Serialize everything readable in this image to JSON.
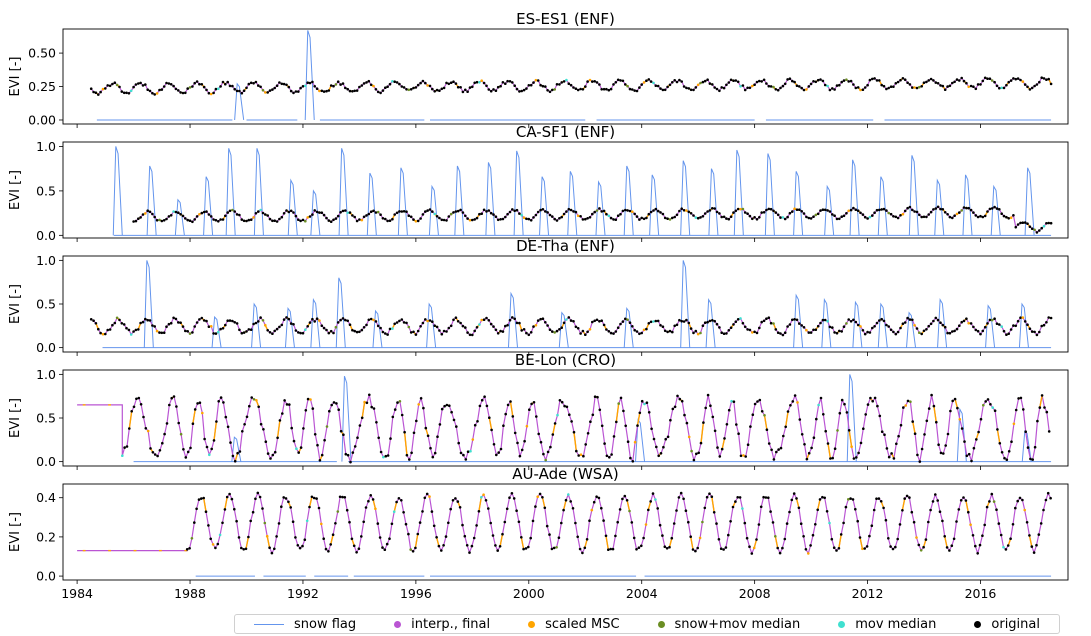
{
  "chart_data": {
    "type": "line",
    "xticks": [
      "1984",
      "1988",
      "1992",
      "1996",
      "2000",
      "2004",
      "2008",
      "2012",
      "2016"
    ],
    "x_range": [
      1983.5,
      2019.1
    ],
    "legend": {
      "placement": "bottom",
      "items": [
        {
          "label": "snow flag",
          "kind": "line",
          "color": "#6495ed"
        },
        {
          "label": "interp., final",
          "kind": "dot",
          "color": "#ba55d3"
        },
        {
          "label": "scaled MSC",
          "kind": "dot",
          "color": "#ffa500"
        },
        {
          "label": "snow+mov median",
          "kind": "dot",
          "color": "#6b8e23"
        },
        {
          "label": "mov median",
          "kind": "dot",
          "color": "#40e0d0"
        },
        {
          "label": "original",
          "kind": "dot",
          "color": "#000000"
        }
      ]
    },
    "panels": [
      {
        "title": "ES-ES1 (ENF)",
        "ylabel": "EVI [-]",
        "ylim": [
          -0.03,
          0.68
        ],
        "yticks": [
          "0.00",
          "0.25",
          "0.50"
        ],
        "ytick_values": [
          0,
          0.25,
          0.5
        ],
        "start": 1984.5,
        "end": 2018.5,
        "snow_segments": [
          [
            1984.7,
            1989.5
          ],
          [
            1990.0,
            1991.8
          ],
          [
            1992.6,
            1996.3
          ],
          [
            1996.5,
            2002.0
          ],
          [
            2002.4,
            2008.0
          ],
          [
            2008.4,
            2012.2
          ],
          [
            2012.6,
            2018.5
          ]
        ],
        "snow_spikes": [
          {
            "x": 1989.7,
            "y": 0.27
          },
          {
            "x": 1992.2,
            "y": 0.67
          }
        ]
      },
      {
        "title": "CA-SF1 (ENF)",
        "ylabel": "EVI [-]",
        "ylim": [
          -0.03,
          1.05
        ],
        "yticks": [
          "0.0",
          "0.5",
          "1.0"
        ],
        "ytick_values": [
          0,
          0.5,
          1.0
        ],
        "start": 1986.0,
        "end": 2018.5,
        "snow_segments": [
          [
            1985.3,
            2018.5
          ]
        ],
        "snow_spikes": [
          {
            "x": 1985.4,
            "y": 1.0
          },
          {
            "x": 1986.6,
            "y": 0.78
          },
          {
            "x": 1987.6,
            "y": 0.4
          },
          {
            "x": 1988.6,
            "y": 0.66
          },
          {
            "x": 1989.4,
            "y": 0.98
          },
          {
            "x": 1990.4,
            "y": 0.98
          },
          {
            "x": 1991.6,
            "y": 0.62
          },
          {
            "x": 1992.4,
            "y": 0.5
          },
          {
            "x": 1993.4,
            "y": 0.98
          },
          {
            "x": 1994.4,
            "y": 0.7
          },
          {
            "x": 1995.5,
            "y": 0.76
          },
          {
            "x": 1996.6,
            "y": 0.55
          },
          {
            "x": 1997.5,
            "y": 0.78
          },
          {
            "x": 1998.6,
            "y": 0.82
          },
          {
            "x": 1999.6,
            "y": 0.95
          },
          {
            "x": 2000.5,
            "y": 0.66
          },
          {
            "x": 2001.5,
            "y": 0.72
          },
          {
            "x": 2002.5,
            "y": 0.6
          },
          {
            "x": 2003.5,
            "y": 0.78
          },
          {
            "x": 2004.4,
            "y": 0.68
          },
          {
            "x": 2005.5,
            "y": 0.84
          },
          {
            "x": 2006.5,
            "y": 0.75
          },
          {
            "x": 2007.4,
            "y": 0.96
          },
          {
            "x": 2008.5,
            "y": 0.92
          },
          {
            "x": 2009.5,
            "y": 0.72
          },
          {
            "x": 2010.6,
            "y": 0.55
          },
          {
            "x": 2011.5,
            "y": 0.85
          },
          {
            "x": 2012.5,
            "y": 0.66
          },
          {
            "x": 2013.6,
            "y": 0.9
          },
          {
            "x": 2014.5,
            "y": 0.62
          },
          {
            "x": 2015.5,
            "y": 0.68
          },
          {
            "x": 2016.5,
            "y": 0.55
          },
          {
            "x": 2017.7,
            "y": 0.76
          }
        ]
      },
      {
        "title": "DE-Tha (ENF)",
        "ylabel": "EVI [-]",
        "ylim": [
          -0.05,
          1.05
        ],
        "yticks": [
          "0.0",
          "0.5",
          "1.0"
        ],
        "ytick_values": [
          0,
          0.5,
          1.0
        ],
        "start": 1984.5,
        "end": 2018.5,
        "snow_segments": [
          [
            1984.9,
            2018.5
          ]
        ],
        "snow_spikes": [
          {
            "x": 1986.5,
            "y": 1.0
          },
          {
            "x": 1988.9,
            "y": 0.35
          },
          {
            "x": 1990.3,
            "y": 0.5
          },
          {
            "x": 1991.5,
            "y": 0.45
          },
          {
            "x": 1992.4,
            "y": 0.55
          },
          {
            "x": 1993.3,
            "y": 0.8
          },
          {
            "x": 1994.6,
            "y": 0.42
          },
          {
            "x": 1996.5,
            "y": 0.5
          },
          {
            "x": 1999.4,
            "y": 0.62
          },
          {
            "x": 2001.2,
            "y": 0.4
          },
          {
            "x": 2003.5,
            "y": 0.45
          },
          {
            "x": 2005.5,
            "y": 1.0
          },
          {
            "x": 2006.4,
            "y": 0.55
          },
          {
            "x": 2009.5,
            "y": 0.6
          },
          {
            "x": 2010.5,
            "y": 0.55
          },
          {
            "x": 2011.6,
            "y": 0.52
          },
          {
            "x": 2012.5,
            "y": 0.5
          },
          {
            "x": 2013.5,
            "y": 0.4
          },
          {
            "x": 2014.6,
            "y": 0.55
          },
          {
            "x": 2016.3,
            "y": 0.48
          },
          {
            "x": 2017.5,
            "y": 0.5
          }
        ]
      },
      {
        "title": "BE-Lon (CRO)",
        "ylabel": "EVI [-]",
        "ylim": [
          -0.05,
          1.05
        ],
        "yticks": [
          "0.0",
          "0.5",
          "1.0"
        ],
        "ytick_values": [
          0,
          0.5,
          1.0
        ],
        "start": 1984.0,
        "end": 2018.5,
        "snow_segments": [
          [
            1986.0,
            1993.2
          ],
          [
            1993.6,
            2018.5
          ]
        ],
        "snow_spikes": [
          {
            "x": 1989.6,
            "y": 0.28
          },
          {
            "x": 1993.5,
            "y": 0.98
          },
          {
            "x": 2003.9,
            "y": 0.48
          },
          {
            "x": 2011.4,
            "y": 1.0
          },
          {
            "x": 2015.3,
            "y": 0.6
          },
          {
            "x": 2017.6,
            "y": 0.35
          }
        ]
      },
      {
        "title": "AU-Ade (WSA)",
        "ylabel": "EVI [-]",
        "ylim": [
          -0.02,
          0.47
        ],
        "yticks": [
          "0.0",
          "0.2",
          "0.4"
        ],
        "ytick_values": [
          0,
          0.2,
          0.4
        ],
        "start": 1984.0,
        "end": 2018.5,
        "snow_segments": [
          [
            1988.2,
            1990.3
          ],
          [
            1990.6,
            1992.1
          ],
          [
            1992.4,
            1993.6
          ],
          [
            1993.8,
            1996.3
          ],
          [
            1996.5,
            2003.8
          ],
          [
            2004.1,
            2018.5
          ]
        ],
        "snow_spikes": []
      }
    ]
  }
}
